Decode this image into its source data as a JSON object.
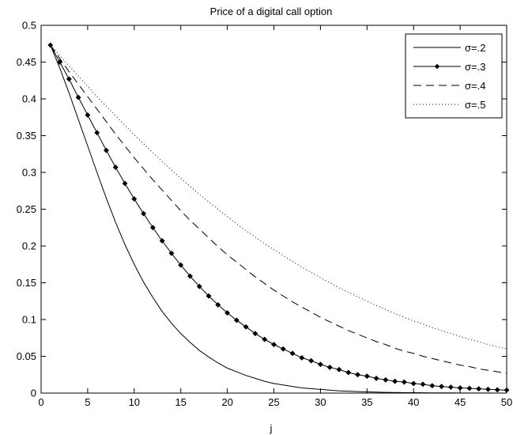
{
  "chart_data": {
    "type": "line",
    "title": "Price of a digital call option",
    "xlabel": "j",
    "ylabel": "",
    "xlim": [
      0,
      50
    ],
    "ylim": [
      0,
      0.5
    ],
    "xticks": [
      "0",
      "5",
      "10",
      "15",
      "20",
      "25",
      "30",
      "35",
      "40",
      "45",
      "50"
    ],
    "yticks": [
      "0",
      "0.05",
      "0.1",
      "0.15",
      "0.2",
      "0.25",
      "0.3",
      "0.35",
      "0.4",
      "0.45",
      "0.5"
    ],
    "grid": false,
    "legend_position": "top-right",
    "x": [
      1,
      2,
      3,
      4,
      5,
      6,
      7,
      8,
      9,
      10,
      11,
      12,
      13,
      14,
      15,
      16,
      17,
      18,
      19,
      20,
      21,
      22,
      23,
      24,
      25,
      26,
      27,
      28,
      29,
      30,
      31,
      32,
      33,
      34,
      35,
      36,
      37,
      38,
      39,
      40,
      41,
      42,
      43,
      44,
      45,
      46,
      47,
      48,
      49,
      50
    ],
    "series": [
      {
        "name": "σ=.2",
        "style": "solid",
        "marker": "none",
        "color": "#000000",
        "values": [
          0.473,
          0.442,
          0.408,
          0.372,
          0.336,
          0.3,
          0.265,
          0.232,
          0.202,
          0.175,
          0.151,
          0.13,
          0.111,
          0.095,
          0.081,
          0.069,
          0.058,
          0.049,
          0.041,
          0.034,
          0.029,
          0.024,
          0.02,
          0.016,
          0.013,
          0.011,
          0.009,
          0.007,
          0.006,
          0.005,
          0.004,
          0.003,
          0.0025,
          0.002,
          0.0016,
          0.0013,
          0.001,
          0.0008,
          0.0006,
          0.0005,
          0.0004,
          0.0003,
          0.0002,
          0.0002,
          0.0001,
          0.0001,
          0.0001,
          0.0001,
          0.0,
          0.0
        ]
      },
      {
        "name": "σ=.3",
        "style": "solid",
        "marker": "diamond",
        "color": "#000000",
        "values": [
          0.473,
          0.45,
          0.427,
          0.402,
          0.378,
          0.354,
          0.33,
          0.307,
          0.285,
          0.264,
          0.244,
          0.225,
          0.207,
          0.19,
          0.174,
          0.159,
          0.145,
          0.132,
          0.12,
          0.109,
          0.099,
          0.09,
          0.081,
          0.073,
          0.066,
          0.06,
          0.054,
          0.048,
          0.044,
          0.039,
          0.035,
          0.032,
          0.028,
          0.025,
          0.023,
          0.02,
          0.018,
          0.016,
          0.015,
          0.013,
          0.012,
          0.01,
          0.009,
          0.008,
          0.007,
          0.0065,
          0.0058,
          0.0051,
          0.0045,
          0.004
        ]
      },
      {
        "name": "σ=.4",
        "style": "dashed",
        "marker": "none",
        "color": "#000000",
        "values": [
          0.473,
          0.455,
          0.437,
          0.42,
          0.403,
          0.386,
          0.369,
          0.352,
          0.336,
          0.32,
          0.305,
          0.29,
          0.276,
          0.262,
          0.248,
          0.235,
          0.223,
          0.211,
          0.199,
          0.188,
          0.178,
          0.168,
          0.158,
          0.149,
          0.14,
          0.132,
          0.124,
          0.117,
          0.11,
          0.103,
          0.097,
          0.091,
          0.085,
          0.08,
          0.075,
          0.07,
          0.066,
          0.061,
          0.057,
          0.054,
          0.05,
          0.047,
          0.044,
          0.041,
          0.038,
          0.036,
          0.033,
          0.031,
          0.029,
          0.027
        ]
      },
      {
        "name": "σ=.5",
        "style": "dotted",
        "marker": "none",
        "color": "#000000",
        "values": [
          0.473,
          0.459,
          0.445,
          0.431,
          0.417,
          0.403,
          0.39,
          0.377,
          0.364,
          0.351,
          0.339,
          0.327,
          0.315,
          0.303,
          0.292,
          0.281,
          0.27,
          0.26,
          0.25,
          0.24,
          0.23,
          0.221,
          0.212,
          0.203,
          0.195,
          0.187,
          0.179,
          0.171,
          0.164,
          0.157,
          0.15,
          0.143,
          0.137,
          0.131,
          0.125,
          0.119,
          0.114,
          0.108,
          0.103,
          0.098,
          0.094,
          0.089,
          0.085,
          0.081,
          0.077,
          0.073,
          0.07,
          0.066,
          0.063,
          0.06
        ]
      }
    ]
  }
}
